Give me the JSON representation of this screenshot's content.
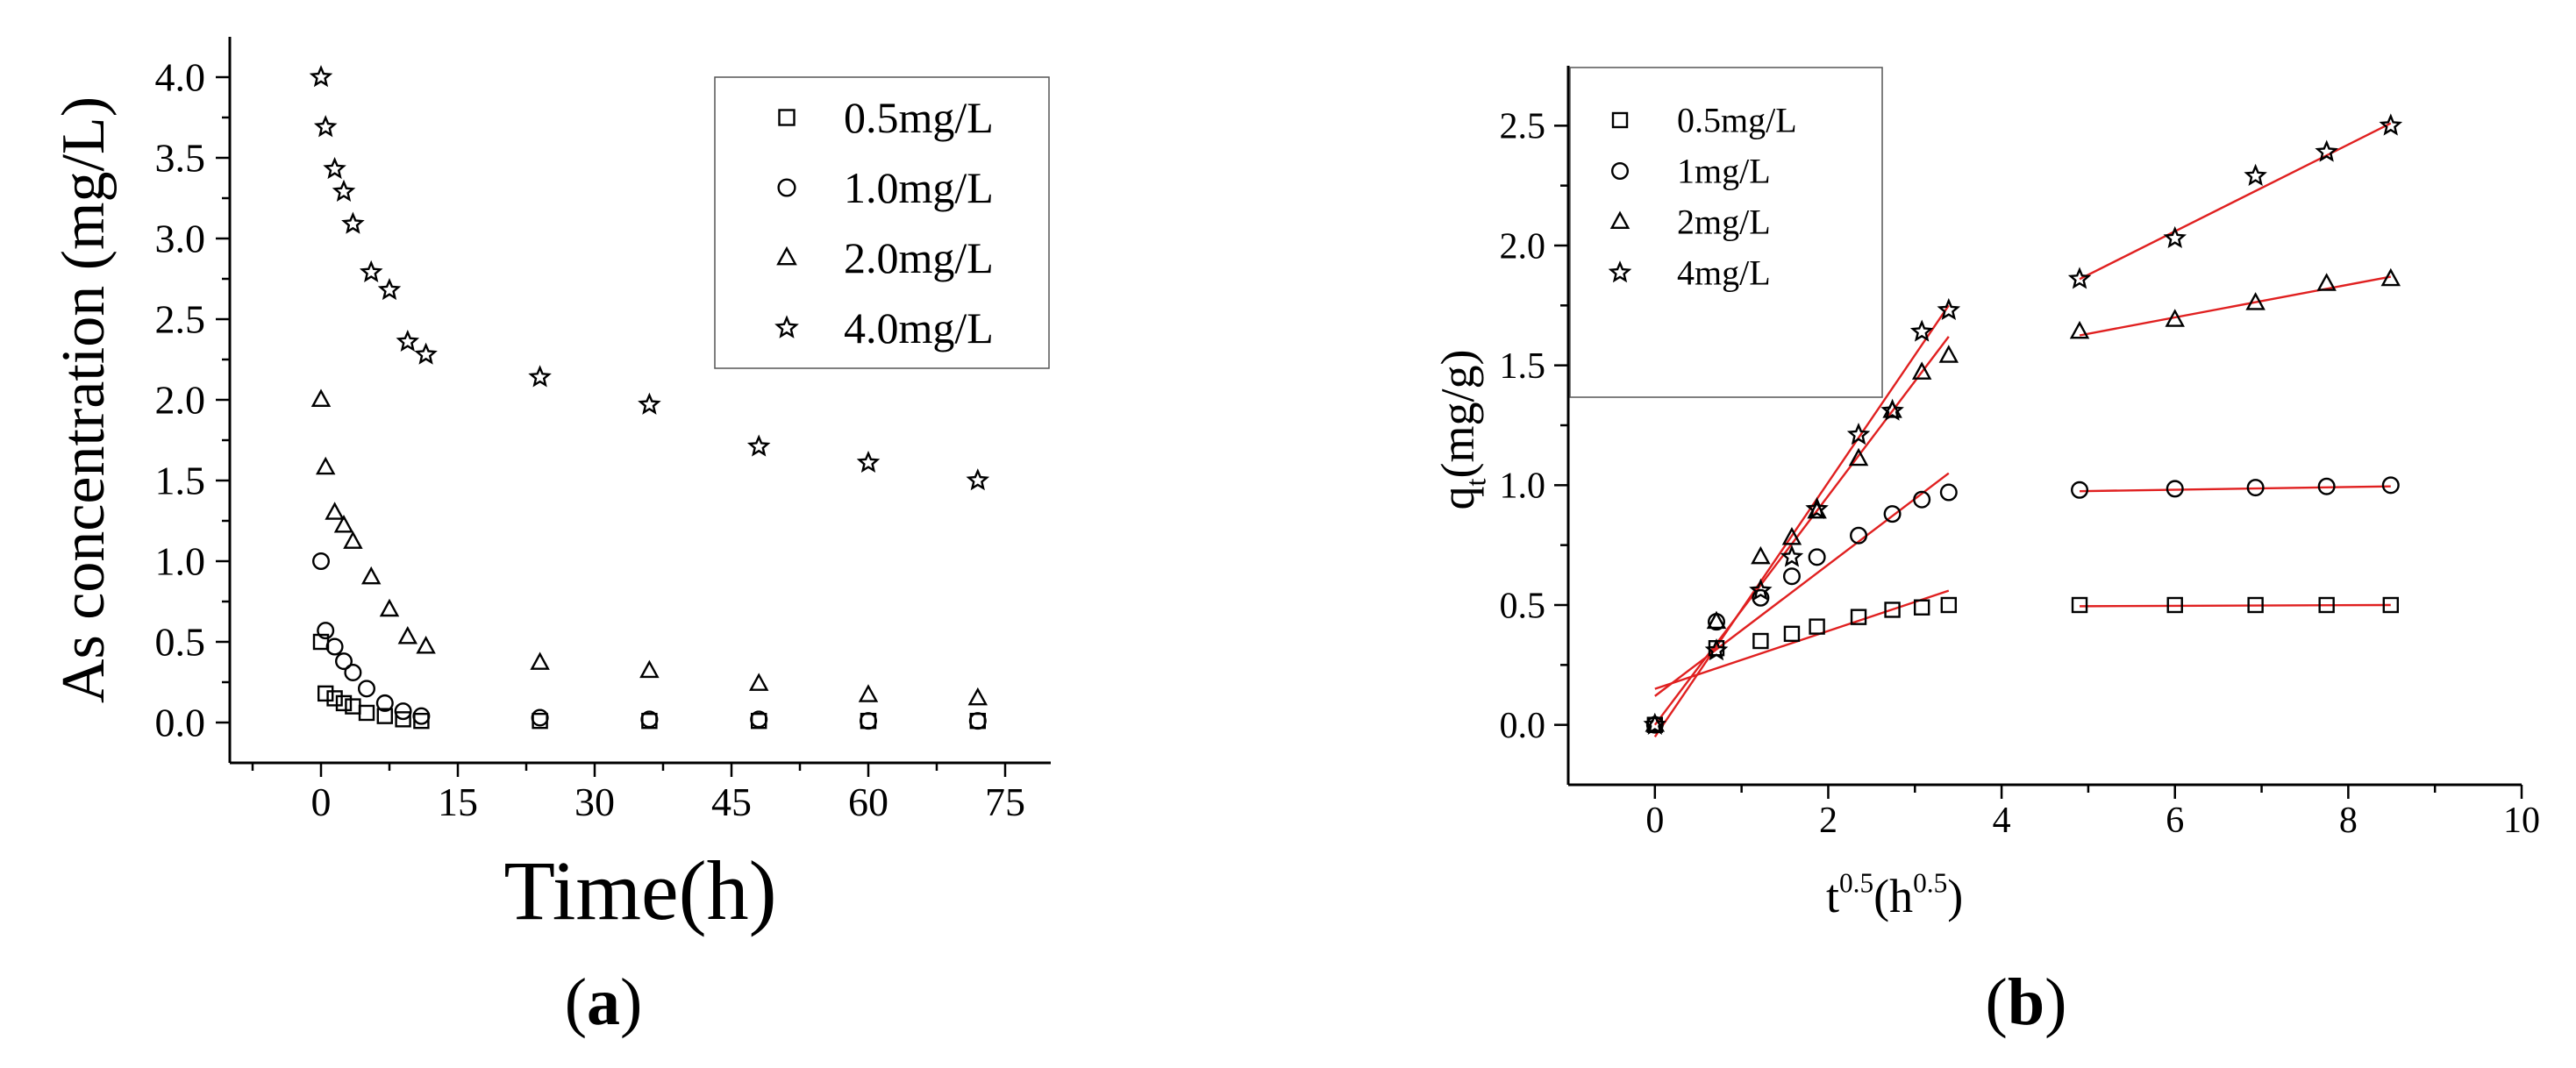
{
  "panels": [
    {
      "caption": "(a)",
      "chart_data": {
        "type": "scatter",
        "xlabel": "Time(h)",
        "ylabel": "As concentration (mg/L)",
        "xlim": [
          -10,
          80
        ],
        "ylim": [
          -0.25,
          4.25
        ],
        "xticks": [
          0,
          15,
          30,
          45,
          60,
          75
        ],
        "yticks": [
          0.0,
          0.5,
          1.0,
          1.5,
          2.0,
          2.5,
          3.0,
          3.5,
          4.0
        ],
        "legend_position": "top-right",
        "series": [
          {
            "name": "0.5mg/L",
            "marker": "square",
            "x": [
              0,
              0.5,
              1.5,
              2.5,
              3.5,
              5,
              7,
              9,
              11,
              24,
              36,
              48,
              60,
              72
            ],
            "y": [
              0.5,
              0.18,
              0.15,
              0.12,
              0.1,
              0.06,
              0.04,
              0.02,
              0.01,
              0.01,
              0.01,
              0.01,
              0.01,
              0.01
            ]
          },
          {
            "name": "1.0mg/L",
            "marker": "circle",
            "x": [
              0,
              0.5,
              1.5,
              2.5,
              3.5,
              5,
              7,
              9,
              11,
              24,
              36,
              48,
              60,
              72
            ],
            "y": [
              1.0,
              0.57,
              0.47,
              0.38,
              0.31,
              0.21,
              0.12,
              0.07,
              0.04,
              0.03,
              0.02,
              0.02,
              0.01,
              0.01
            ]
          },
          {
            "name": "2.0mg/L",
            "marker": "triangle",
            "x": [
              0,
              0.5,
              1.5,
              2.5,
              3.5,
              5.5,
              7.5,
              9.5,
              11.5,
              24,
              36,
              48,
              60,
              72
            ],
            "y": [
              2.0,
              1.58,
              1.3,
              1.22,
              1.12,
              0.9,
              0.7,
              0.53,
              0.47,
              0.37,
              0.32,
              0.24,
              0.17,
              0.15
            ]
          },
          {
            "name": "4.0mg/L",
            "marker": "star",
            "x": [
              0,
              0.5,
              1.5,
              2.5,
              3.5,
              5.5,
              7.5,
              9.5,
              11.5,
              24,
              36,
              48,
              60,
              72
            ],
            "y": [
              4.0,
              3.69,
              3.43,
              3.29,
              3.09,
              2.79,
              2.68,
              2.36,
              2.28,
              2.14,
              1.97,
              1.71,
              1.61,
              1.5
            ]
          }
        ]
      }
    },
    {
      "caption": "(b)",
      "chart_data": {
        "type": "scatter",
        "xlabel": "t0.5(h0.5)",
        "xlabel_parts": [
          "t",
          "0.5",
          "(h",
          "0.5",
          ")"
        ],
        "ylabel": "qt(mg/g)",
        "ylabel_parts": [
          "q",
          "t",
          "(mg/g)"
        ],
        "xlim": [
          -1,
          10
        ],
        "ylim": [
          -0.25,
          2.75
        ],
        "xticks": [
          0,
          2,
          4,
          6,
          8,
          10
        ],
        "yticks": [
          0.0,
          0.5,
          1.0,
          1.5,
          2.0,
          2.5
        ],
        "legend_position": "top-left",
        "series": [
          {
            "name": "0.5mg/L",
            "marker": "square",
            "x": [
              0,
              0.71,
              1.22,
              1.58,
              1.87,
              2.35,
              2.74,
              3.08,
              3.39,
              4.9,
              6.0,
              6.93,
              7.75,
              8.49
            ],
            "y": [
              0,
              0.32,
              0.35,
              0.38,
              0.41,
              0.45,
              0.48,
              0.49,
              0.5,
              0.5,
              0.5,
              0.5,
              0.5,
              0.5
            ],
            "fits": [
              {
                "x": [
                  0,
                  3.39
                ],
                "y": [
                  0.15,
                  0.56
                ]
              },
              {
                "x": [
                  4.9,
                  8.49
                ],
                "y": [
                  0.495,
                  0.5
                ]
              }
            ]
          },
          {
            "name": "1mg/L",
            "marker": "circle",
            "x": [
              0,
              0.71,
              1.22,
              1.58,
              1.87,
              2.35,
              2.74,
              3.08,
              3.39,
              4.9,
              6.0,
              6.93,
              7.75,
              8.49
            ],
            "y": [
              0,
              0.43,
              0.53,
              0.62,
              0.7,
              0.79,
              0.88,
              0.94,
              0.97,
              0.98,
              0.985,
              0.99,
              0.995,
              1.0
            ],
            "fits": [
              {
                "x": [
                  0,
                  3.39
                ],
                "y": [
                  0.12,
                  1.05
                ]
              },
              {
                "x": [
                  4.9,
                  8.49
                ],
                "y": [
                  0.975,
                  0.995
                ]
              }
            ]
          },
          {
            "name": "2mg/L",
            "marker": "triangle",
            "x": [
              0,
              0.71,
              1.22,
              1.58,
              1.87,
              2.35,
              2.74,
              3.08,
              3.39,
              4.9,
              6.0,
              6.93,
              7.75,
              8.49
            ],
            "y": [
              0,
              0.43,
              0.7,
              0.78,
              0.89,
              1.11,
              1.31,
              1.47,
              1.54,
              1.64,
              1.69,
              1.76,
              1.84,
              1.86
            ],
            "fits": [
              {
                "x": [
                  0,
                  3.39
                ],
                "y": [
                  0.0,
                  1.62
                ]
              },
              {
                "x": [
                  4.9,
                  8.49
                ],
                "y": [
                  1.625,
                  1.87
                ]
              }
            ]
          },
          {
            "name": "4mg/L",
            "marker": "star",
            "x": [
              0,
              0.71,
              1.22,
              1.58,
              1.87,
              2.35,
              2.74,
              3.08,
              3.39,
              4.9,
              6.0,
              6.93,
              7.75,
              8.49
            ],
            "y": [
              0,
              0.31,
              0.56,
              0.7,
              0.9,
              1.21,
              1.31,
              1.64,
              1.73,
              1.86,
              2.03,
              2.29,
              2.39,
              2.5
            ],
            "fits": [
              {
                "x": [
                  0,
                  3.39
                ],
                "y": [
                  -0.05,
                  1.75
                ]
              },
              {
                "x": [
                  4.9,
                  8.49
                ],
                "y": [
                  1.86,
                  2.51
                ]
              }
            ]
          }
        ]
      }
    }
  ]
}
